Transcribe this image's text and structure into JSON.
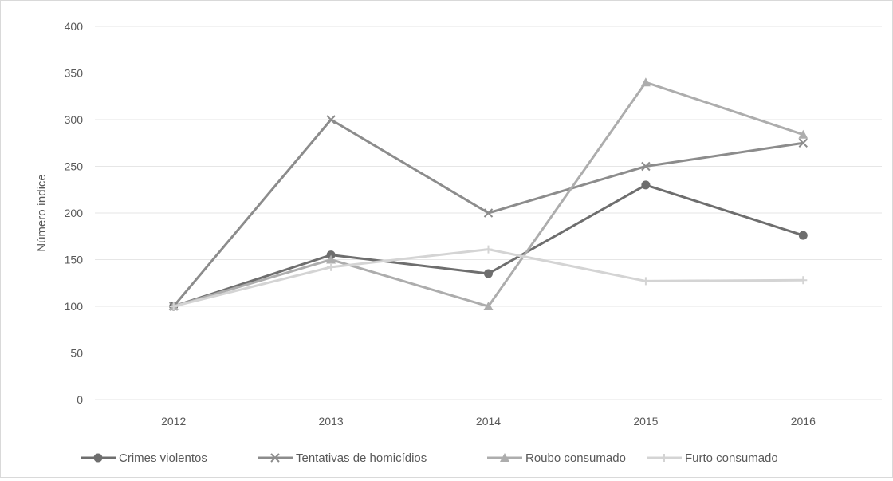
{
  "chart_data": {
    "type": "line",
    "title": "",
    "xlabel": "",
    "ylabel": "Número índice",
    "ylim": [
      0,
      400
    ],
    "yticks": [
      0,
      50,
      100,
      150,
      200,
      250,
      300,
      350,
      400
    ],
    "categories": [
      "2012",
      "2013",
      "2014",
      "2015",
      "2016"
    ],
    "grid": true,
    "legend_position": "bottom",
    "series": [
      {
        "name": "Crimes violentos",
        "marker": "circle",
        "color": "#6e6e6e",
        "values": [
          100,
          155,
          135,
          230,
          176
        ]
      },
      {
        "name": "Tentativas de homicídios",
        "marker": "x",
        "color": "#8c8c8c",
        "values": [
          100,
          300,
          200,
          250,
          275
        ]
      },
      {
        "name": "Roubo consumado",
        "marker": "triangle",
        "color": "#adadad",
        "values": [
          100,
          150,
          100,
          340,
          284
        ]
      },
      {
        "name": "Furto consumado",
        "marker": "plus",
        "color": "#d4d4d4",
        "values": [
          100,
          142,
          161,
          127,
          128
        ]
      }
    ]
  }
}
